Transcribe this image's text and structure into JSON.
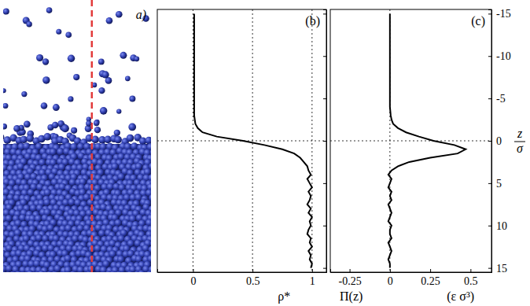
{
  "chart_data": [
    {
      "type": "snapshot",
      "title": "a)"
    },
    {
      "type": "line",
      "title": "(b)",
      "orientation": "horizontal",
      "color": "#000000",
      "grid": true,
      "tick_labels": "y",
      "ylabel": "ρ*",
      "x": [
        -15,
        -14,
        -13,
        -12,
        -11,
        -10,
        -9,
        -8,
        -7,
        -6,
        -5,
        -4,
        -3,
        -2.5,
        -2,
        -1.5,
        -1,
        -0.5,
        0,
        0.5,
        1,
        1.5,
        2,
        2.5,
        3,
        3.5,
        4,
        4.5,
        5,
        5.5,
        6,
        6.5,
        7,
        7.5,
        8,
        8.5,
        9,
        9.5,
        10,
        10.5,
        11,
        11.5,
        12,
        12.5,
        13,
        13.5,
        14,
        14.5,
        15
      ],
      "values": [
        0.01,
        0.01,
        0.01,
        0.01,
        0.01,
        0.01,
        0.01,
        0.01,
        0.01,
        0.01,
        0.01,
        0.01,
        0.01,
        0.015,
        0.02,
        0.04,
        0.08,
        0.2,
        0.42,
        0.6,
        0.75,
        0.85,
        0.9,
        0.93,
        0.96,
        0.97,
        0.99,
        0.96,
        0.98,
        1.0,
        0.97,
        0.99,
        0.98,
        0.96,
        0.99,
        0.97,
        1.0,
        0.98,
        0.99,
        0.97,
        0.96,
        0.99,
        0.98,
        1.0,
        0.97,
        0.99,
        0.98,
        1.0,
        0.99
      ],
      "xlim": [
        -15.5,
        15.5
      ],
      "xticks": [
        -15,
        -10,
        -5,
        0,
        5,
        10,
        15
      ],
      "ylim": [
        -0.3,
        1.12
      ],
      "yticks": [
        0,
        0.5,
        1
      ],
      "reference_lines": {
        "x": [
          0
        ]
      }
    },
    {
      "type": "line",
      "title": "(c)",
      "orientation": "horizontal",
      "color": "#000000",
      "grid": false,
      "ylabel": "Π(z)",
      "ylabel_units": "(ε σ³)",
      "xlabel": {
        "numerator": "z",
        "denominator": "σ"
      },
      "x": [
        -15,
        -14,
        -13,
        -12,
        -11,
        -10,
        -9,
        -8,
        -7,
        -6,
        -5,
        -4,
        -3,
        -2.5,
        -2,
        -1.5,
        -1,
        -0.5,
        0,
        0.5,
        1,
        1.5,
        2,
        2.5,
        3,
        3.5,
        4,
        4.5,
        5,
        5.5,
        6,
        6.5,
        7,
        7.5,
        8,
        8.5,
        9,
        9.5,
        10,
        10.5,
        11,
        11.5,
        12,
        12.5,
        13,
        13.5,
        14,
        14.5,
        15
      ],
      "values": [
        0,
        0,
        0,
        0,
        0,
        0,
        0,
        0,
        0,
        0,
        0,
        0,
        0.005,
        0.01,
        0.02,
        0.05,
        0.1,
        0.18,
        0.27,
        0.4,
        0.47,
        0.42,
        0.25,
        0.12,
        0.05,
        0.01,
        -0.01,
        0.01,
        0,
        -0.01,
        0.01,
        0,
        0.01,
        -0.01,
        0,
        0.01,
        0,
        -0.01,
        0.01,
        0,
        0,
        0.01,
        -0.01,
        0,
        0.01,
        0,
        -0.01,
        0,
        0
      ],
      "xlim": [
        -15.5,
        15.5
      ],
      "xticks": [
        -15,
        -10,
        -5,
        0,
        5,
        10,
        15
      ],
      "ylim": [
        -0.37,
        0.63
      ],
      "yticks": [
        -0.25,
        0,
        0.25,
        0.5
      ],
      "reference_lines": {
        "x": [
          0
        ],
        "y": [
          0
        ]
      }
    }
  ]
}
